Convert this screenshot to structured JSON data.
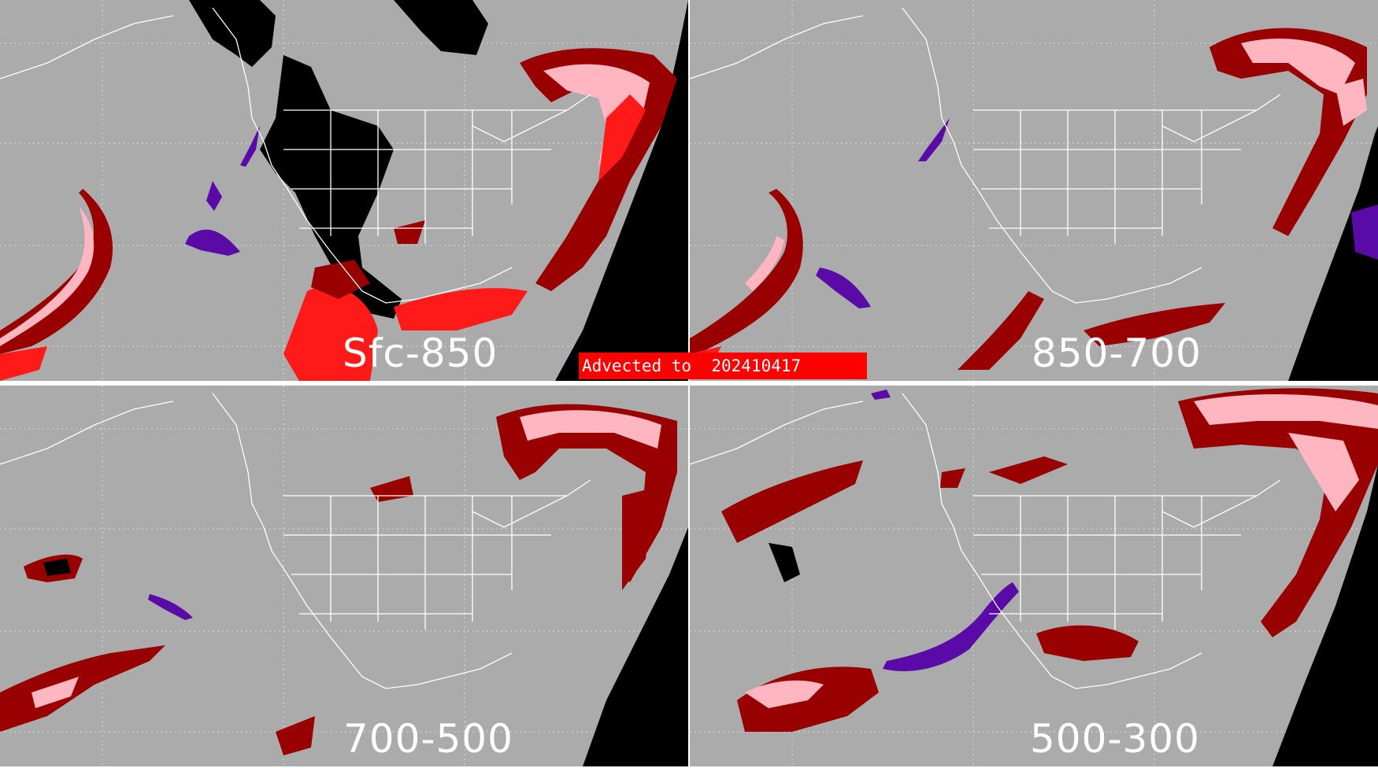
{
  "figure": {
    "banner": {
      "prefix": "Advected to",
      "date": "202410417"
    },
    "panels": [
      {
        "label": "Sfc-850"
      },
      {
        "label": "850-700"
      },
      {
        "label": "700-500"
      },
      {
        "label": "500-300"
      }
    ]
  },
  "colors": {
    "background": "#ababab",
    "map_lines": "#ffffff",
    "dark_red": "#990000",
    "pink": "#ffb6c1",
    "bright_red": "#ff1a1a",
    "purple": "#5a0aa6",
    "black": "#000000",
    "banner": "#ff0000"
  }
}
